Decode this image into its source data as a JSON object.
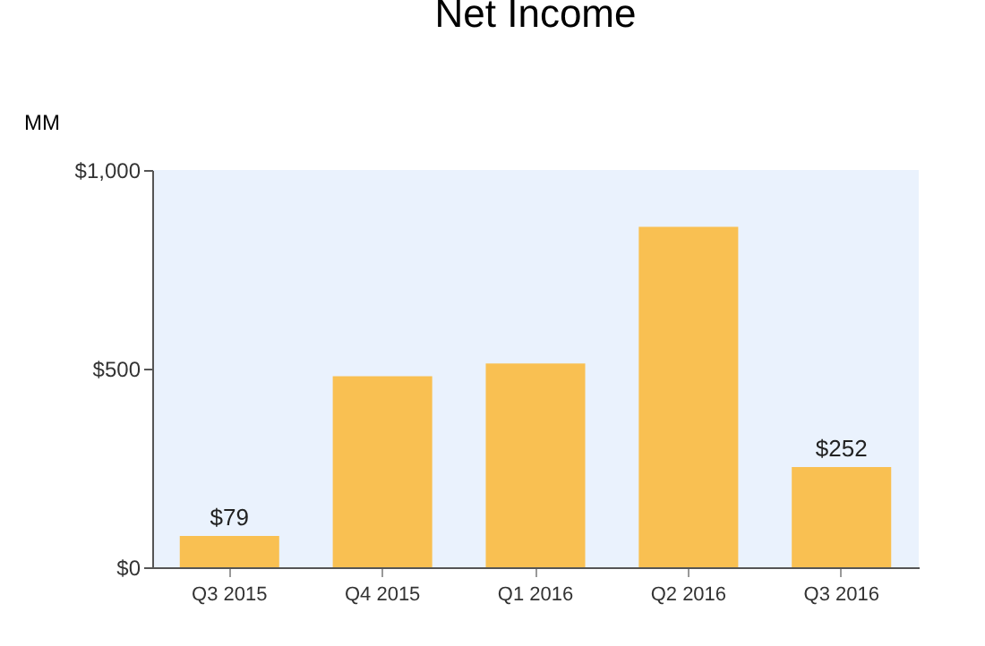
{
  "chart_data": {
    "type": "bar",
    "title": "Net Income",
    "ylabel": "MM",
    "categories": [
      "Q3 2015",
      "Q4 2015",
      "Q1 2016",
      "Q2 2016",
      "Q3 2016"
    ],
    "values": [
      79,
      481,
      513,
      857,
      252
    ],
    "value_labels": [
      "$79",
      null,
      null,
      null,
      "$252"
    ],
    "color": "#f9c052",
    "ylim": [
      0,
      1000
    ],
    "yticks": [
      {
        "value": 0,
        "label": "$0"
      },
      {
        "value": 500,
        "label": "$500"
      },
      {
        "value": 1000,
        "label": "$1,000"
      }
    ],
    "grid": false
  }
}
